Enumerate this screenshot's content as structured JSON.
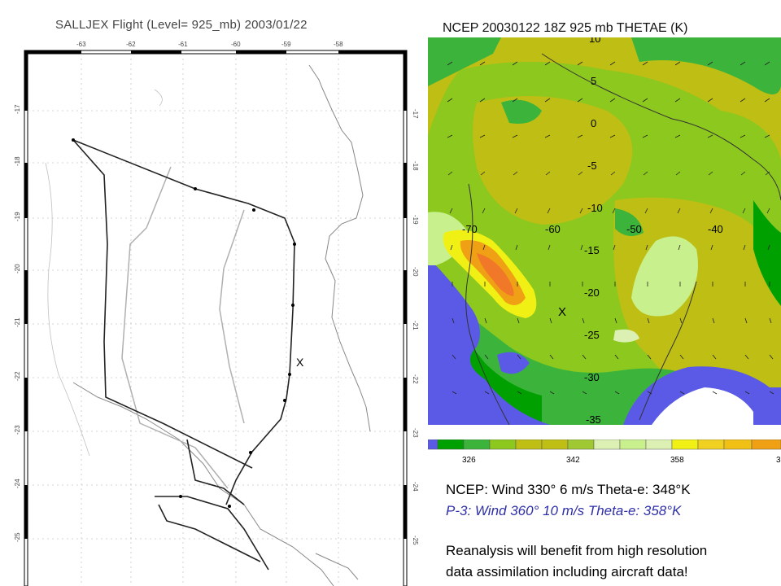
{
  "left_panel": {
    "title": "SALLJEX Flight (Level= 925_mb) 2003/01/22",
    "lon_ticks": [
      "-63",
      "-62",
      "-61",
      "-60",
      "-59",
      "-58"
    ],
    "lat_ticks": [
      "-17",
      "-18",
      "-19",
      "-20",
      "-21",
      "-22",
      "-23",
      "-24",
      "-25"
    ],
    "marker": "X"
  },
  "right_panel": {
    "title": "NCEP 20030122 18Z 925 mb THETAE (K)",
    "lat_labels": [
      "10",
      "5",
      "0",
      "-5",
      "-10",
      "-15",
      "-20",
      "-25",
      "-30",
      "-35"
    ],
    "lon_labels": [
      "-70",
      "-60",
      "-50",
      "-40"
    ],
    "marker": "X",
    "colorbar_labels": [
      "326",
      "342",
      "358",
      "3"
    ],
    "colors": {
      "blue": "#5a5ae6",
      "dark_green": "#00a000",
      "green": "#3cb43c",
      "yellow_green": "#8cc81e",
      "olive": "#bebe14",
      "light_green": "#c8f08c",
      "pale": "#dcf0b4",
      "yellow": "#f0f014",
      "orange": "#f0a014",
      "red_orange": "#f07828"
    }
  },
  "info": {
    "ncep": "NCEP:  Wind 330° 6 m/s  Theta-e: 348°K",
    "p3": "P-3:   Wind 360° 10 m/s   Theta-e: 358°K",
    "note_line1": "Reanalysis will benefit from high resolution",
    "note_line2": "data assimilation including aircraft data!"
  }
}
